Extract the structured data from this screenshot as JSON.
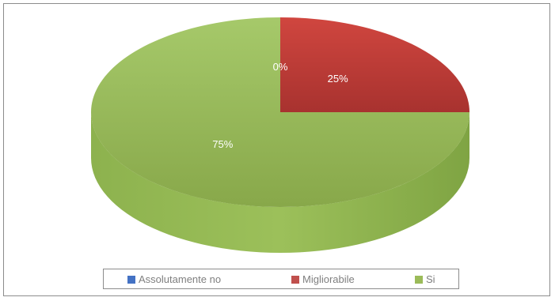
{
  "chart_data": {
    "type": "pie",
    "three_d": true,
    "title": "",
    "categories": [
      "Assolutamente no",
      "Migliorabile",
      "Si"
    ],
    "values": [
      0,
      25,
      75
    ],
    "labels": [
      "0%",
      "25%",
      "75%"
    ],
    "colors": [
      "#4472c4",
      "#c0504d",
      "#9bbb59"
    ],
    "side_colors": [
      "#2f5597",
      "#943634",
      "#6e8b3d"
    ],
    "legend_position": "bottom",
    "start_angle_deg": 0,
    "direction": "clockwise"
  }
}
